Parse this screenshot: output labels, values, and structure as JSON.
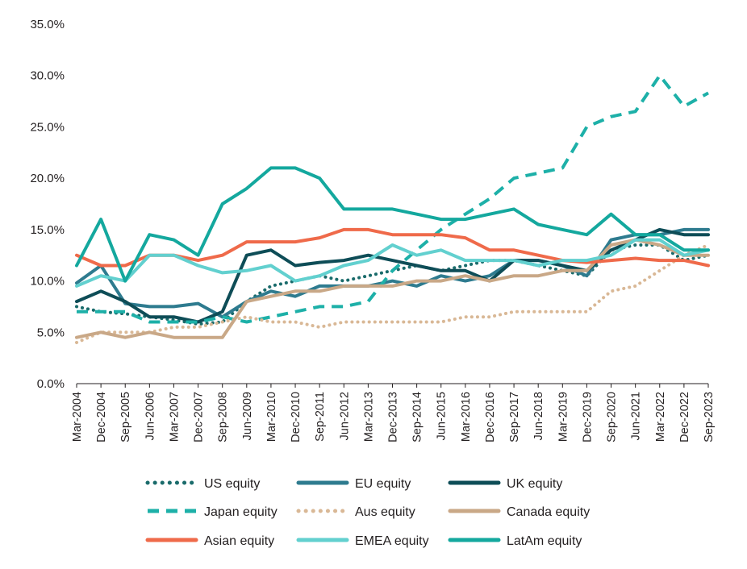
{
  "chart_data": {
    "type": "line",
    "title": "",
    "xlabel": "",
    "ylabel": "",
    "ylim": [
      0,
      35
    ],
    "grid": false,
    "legend_position": "bottom",
    "y_ticks": [
      "0.0%",
      "5.0%",
      "10.0%",
      "15.0%",
      "20.0%",
      "25.0%",
      "30.0%",
      "35.0%"
    ],
    "y_tick_values": [
      0,
      5,
      10,
      15,
      20,
      25,
      30,
      35
    ],
    "x_tick_labels": [
      "Mar-2004",
      "Dec-2004",
      "Sep-2005",
      "Jun-2006",
      "Mar-2007",
      "Dec-2007",
      "Sep-2008",
      "Jun-2009",
      "Mar-2010",
      "Dec-2010",
      "Sep-2011",
      "Jun-2012",
      "Mar-2013",
      "Dec-2013",
      "Sep-2014",
      "Jun-2015",
      "Mar-2016",
      "Dec-2016",
      "Sep-2017",
      "Jun-2018",
      "Mar-2019",
      "Dec-2019",
      "Sep-2020",
      "Jun-2021",
      "Mar-2022",
      "Dec-2022",
      "Sep-2023"
    ],
    "x": [
      "Mar-2004",
      "Dec-2004",
      "Sep-2005",
      "Jun-2006",
      "Mar-2007",
      "Dec-2007",
      "Sep-2008",
      "Jun-2009",
      "Mar-2010",
      "Dec-2010",
      "Sep-2011",
      "Jun-2012",
      "Mar-2013",
      "Dec-2013",
      "Sep-2014",
      "Jun-2015",
      "Mar-2016",
      "Dec-2016",
      "Sep-2017",
      "Jun-2018",
      "Mar-2019",
      "Dec-2019",
      "Sep-2020",
      "Jun-2021",
      "Mar-2022",
      "Dec-2022",
      "Sep-2023"
    ],
    "series": [
      {
        "name": "US equity",
        "color": "#1a6b6b",
        "dash": "dot",
        "values": [
          7.5,
          7.0,
          6.8,
          6.5,
          6.2,
          5.8,
          6.0,
          8.0,
          9.5,
          10.0,
          10.5,
          10.0,
          10.5,
          11.0,
          11.5,
          11.0,
          11.5,
          12.0,
          12.0,
          11.5,
          11.0,
          10.5,
          13.0,
          13.5,
          13.5,
          12.0,
          12.5
        ]
      },
      {
        "name": "EU equity",
        "color": "#2e7b8f",
        "dash": "solid",
        "values": [
          9.8,
          11.5,
          7.8,
          7.5,
          7.5,
          7.8,
          6.5,
          8.0,
          9.0,
          8.5,
          9.5,
          9.5,
          9.5,
          10.0,
          9.5,
          10.5,
          10.0,
          10.5,
          12.0,
          12.0,
          11.5,
          10.5,
          14.0,
          14.5,
          14.5,
          15.0,
          15.0
        ]
      },
      {
        "name": "UK equity",
        "color": "#0e4d57",
        "dash": "solid",
        "values": [
          8.0,
          9.0,
          8.0,
          6.5,
          6.5,
          6.0,
          7.0,
          12.5,
          13.0,
          11.5,
          11.8,
          12.0,
          12.5,
          12.0,
          11.5,
          11.0,
          11.0,
          10.0,
          12.0,
          12.0,
          11.5,
          11.0,
          13.0,
          14.0,
          15.0,
          14.5,
          14.5
        ]
      },
      {
        "name": "Japan equity",
        "color": "#1db0a8",
        "dash": "dash",
        "values": [
          7.0,
          7.0,
          7.0,
          6.0,
          6.0,
          6.0,
          6.5,
          6.0,
          6.5,
          7.0,
          7.5,
          7.5,
          8.0,
          11.0,
          13.0,
          15.0,
          16.5,
          18.0,
          20.0,
          20.5,
          21.0,
          25.0,
          26.0,
          26.5,
          30.0,
          27.0,
          28.3
        ]
      },
      {
        "name": "Aus equity",
        "color": "#d9b896",
        "dash": "dot",
        "values": [
          4.0,
          5.0,
          5.0,
          5.0,
          5.5,
          5.5,
          6.0,
          6.5,
          6.0,
          6.0,
          5.5,
          6.0,
          6.0,
          6.0,
          6.0,
          6.0,
          6.5,
          6.5,
          7.0,
          7.0,
          7.0,
          7.0,
          9.0,
          9.5,
          11.0,
          12.5,
          13.5
        ]
      },
      {
        "name": "Canada equity",
        "color": "#c9a887",
        "dash": "solid",
        "values": [
          4.5,
          5.0,
          4.5,
          5.0,
          4.5,
          4.5,
          4.5,
          8.0,
          8.5,
          9.0,
          9.0,
          9.5,
          9.5,
          9.5,
          10.0,
          10.0,
          10.5,
          10.0,
          10.5,
          10.5,
          11.0,
          11.0,
          13.5,
          14.0,
          13.5,
          12.5,
          12.5
        ]
      },
      {
        "name": "Asian equity",
        "color": "#ef6a4a",
        "dash": "solid",
        "values": [
          12.5,
          11.5,
          11.5,
          12.5,
          12.5,
          12.0,
          12.5,
          13.8,
          13.8,
          13.8,
          14.2,
          15.0,
          15.0,
          14.5,
          14.5,
          14.5,
          14.2,
          13.0,
          13.0,
          12.5,
          12.0,
          11.8,
          12.0,
          12.2,
          12.0,
          12.0,
          11.5
        ]
      },
      {
        "name": "EMEA equity",
        "color": "#62d0cf",
        "dash": "solid",
        "values": [
          9.5,
          10.5,
          10.0,
          12.5,
          12.5,
          11.5,
          10.8,
          11.0,
          11.5,
          10.0,
          10.5,
          11.5,
          12.0,
          13.5,
          12.5,
          13.0,
          12.0,
          12.0,
          12.0,
          11.5,
          12.0,
          12.0,
          12.5,
          14.0,
          14.0,
          12.5,
          13.0
        ]
      },
      {
        "name": "LatAm equity",
        "color": "#14a89e",
        "dash": "solid",
        "values": [
          11.5,
          16.0,
          10.0,
          14.5,
          14.0,
          12.5,
          17.5,
          19.0,
          21.0,
          21.0,
          20.0,
          17.0,
          17.0,
          17.0,
          16.5,
          16.0,
          16.0,
          16.5,
          17.0,
          15.5,
          15.0,
          14.5,
          16.5,
          14.5,
          14.5,
          13.0,
          13.0
        ]
      }
    ]
  }
}
